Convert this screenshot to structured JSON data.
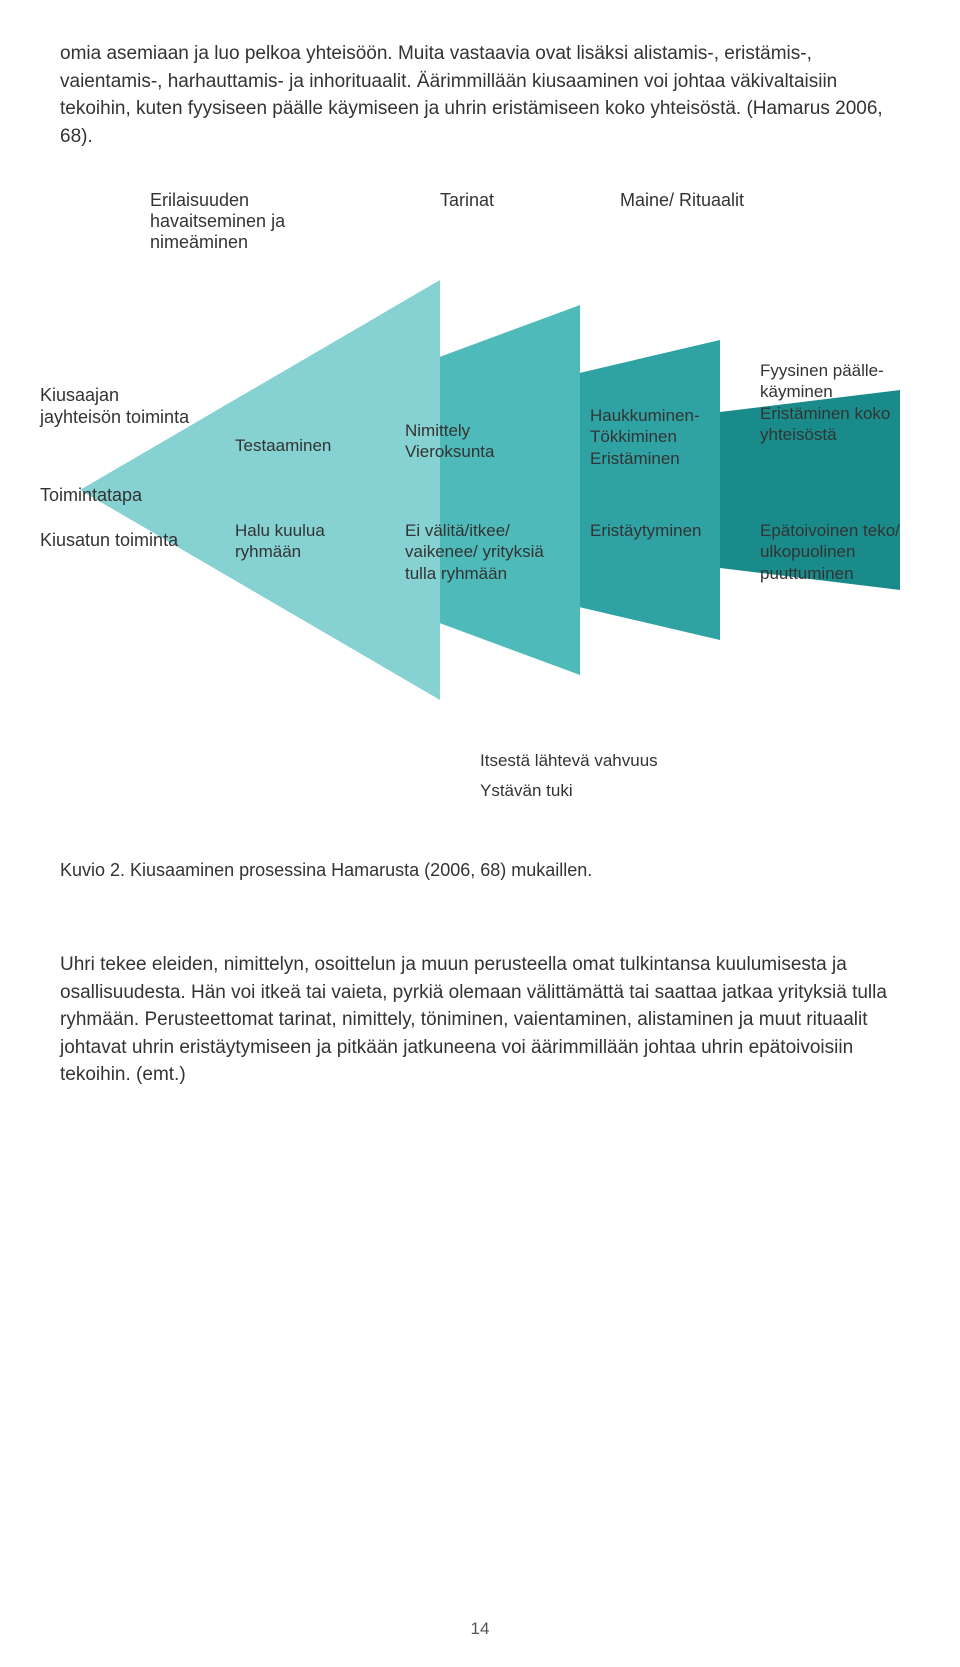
{
  "paragraphs": {
    "top": "omia asemiaan ja luo pelkoa yhteisöön. Muita vastaavia ovat lisäksi alistamis-, eristämis-, vaientamis-, harhauttamis- ja inhorituaalit. Äärimmillään kiusaaminen voi johtaa väkivaltaisiin tekoihin, kuten fyysiseen päälle käymiseen ja uhrin eristämiseen koko yhteisöstä. (Hamarus 2006, 68).",
    "bottom": "Uhri tekee eleiden, nimittelyn, osoittelun ja muun perusteella omat tulkintansa kuulumisesta ja osallisuudesta. Hän voi itkeä tai vaieta, pyrkiä olemaan välittämättä tai saattaa jatkaa yrityksiä tulla ryhmään. Perusteettomat tarinat, nimittely, töniminen, vaientaminen, alistaminen ja muut rituaalit johtavat uhrin eristäytymiseen ja pitkään jatkuneena voi äärimmillään johtaa uhrin epätoivoisiin tekoihin. (emt.)"
  },
  "diagram": {
    "triangle_colors": [
      "#1a8b8b",
      "#2fa3a3",
      "#4fbaba",
      "#86d1d1"
    ],
    "triangle_widths": [
      820,
      640,
      500,
      360
    ],
    "triangle_heights": [
      200,
      300,
      370,
      420
    ],
    "top_labels": {
      "col0": "Erilaisuuden havaitseminen ja nimeäminen",
      "col1": "Tarinat",
      "col2": "Maine/ Rituaalit"
    },
    "left_labels": {
      "row_top": "Kiusaajan jayhteisön toiminta",
      "row_mid": "Toimintatapa",
      "row_bot": "Kiusatun toiminta"
    },
    "cells": {
      "r0c1": "Testaaminen",
      "r0c2": "Nimittely Vieroksunta",
      "r0c3": "Haukkuminen-Tökkiminen Eristäminen",
      "r0c4": "Fyysinen päälle-käyminen\nEristäminen koko yhteisöstä",
      "r1c1": "Halu kuulua ryhmään",
      "r1c2": "Ei välitä/itkee/ vaikenee/ yrityksiä tulla ryhmään",
      "r1c3": "Eristäytyminen",
      "r1c4": "Epätoivoinen teko/ ulkopuolinen puuttuminen"
    },
    "bottom_notes": {
      "a": "Itsestä lähtevä vahvuus",
      "b": "Ystävän tuki"
    }
  },
  "caption": "Kuvio 2. Kiusaaminen prosessina Hamarusta (2006, 68) mukaillen.",
  "page_number": "14"
}
